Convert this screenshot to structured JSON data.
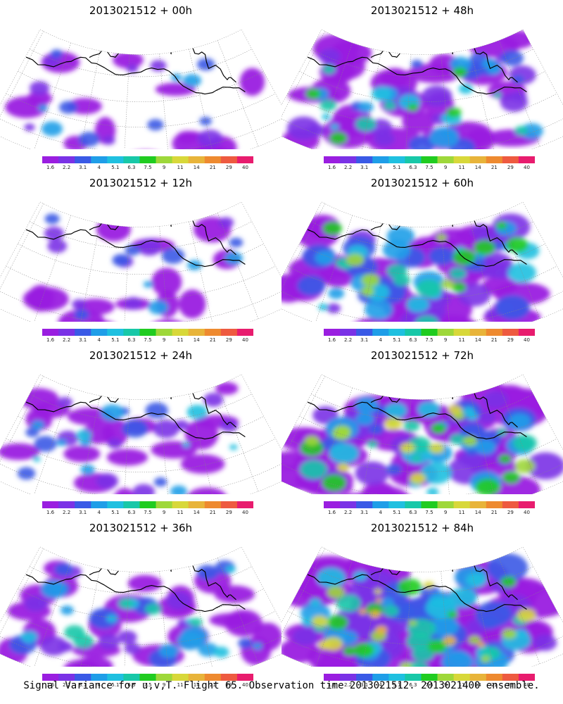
{
  "panels": [
    {
      "title": "2013021512 + 00h",
      "intensity": 1
    },
    {
      "title": "2013021512 + 48h",
      "intensity": 4
    },
    {
      "title": "2013021512 + 12h",
      "intensity": 1
    },
    {
      "title": "2013021512 + 60h",
      "intensity": 5
    },
    {
      "title": "2013021512 + 24h",
      "intensity": 2
    },
    {
      "title": "2013021512 + 72h",
      "intensity": 6
    },
    {
      "title": "2013021512 + 36h",
      "intensity": 3
    },
    {
      "title": "2013021512 + 84h",
      "intensity": 7
    }
  ],
  "colorbar": {
    "labels": [
      "1.6",
      "2.2",
      "3.1",
      "4",
      "5.1",
      "6.3",
      "7.5",
      "9",
      "11",
      "14",
      "21",
      "29",
      "40"
    ],
    "colors": [
      "#9a1ee0",
      "#7a32e6",
      "#3a5ae6",
      "#1f9ee8",
      "#1fc0e0",
      "#18c8a8",
      "#20cc20",
      "#9ed83a",
      "#d8d83a",
      "#e8b43a",
      "#ee8a30",
      "#ee5a40",
      "#e81c6e"
    ]
  },
  "footer": "Signal Variance for u,v,T. Flight 65. Observation time 2013021512. 2013021400 ensemble."
}
